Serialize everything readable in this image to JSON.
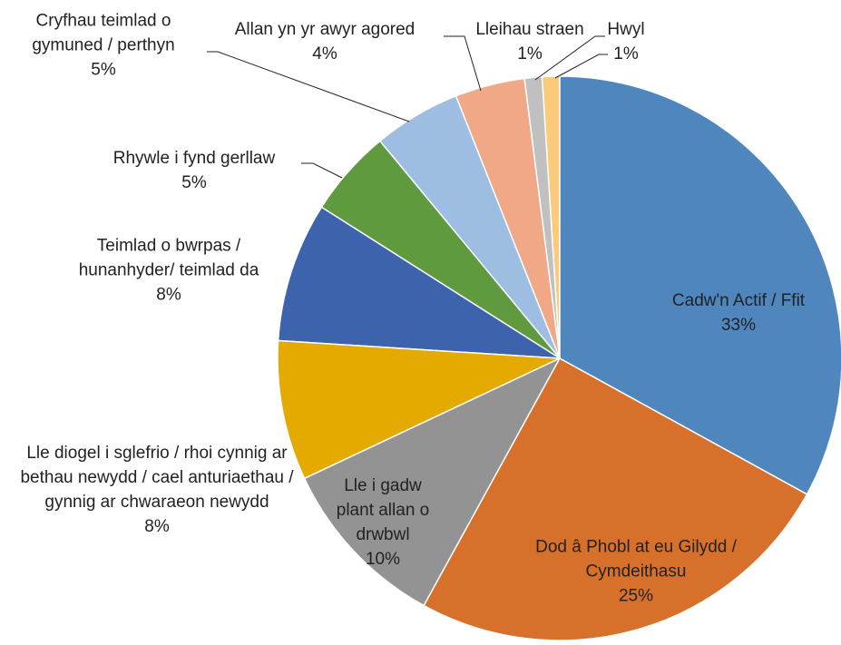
{
  "chart_data": {
    "type": "pie",
    "categories": [
      "Cadw'n Actif / Ffit",
      "Dod â Phobl at eu Gilydd / Cymdeithasu",
      "Lle i gadw plant allan o drwbwl",
      "Lle diogel i sglefrio / rhoi cynnig ar bethau newydd / cael anturiaethau / gynnig ar chwaraeon newydd",
      "Teimlad o bwrpas / hunanhyder/ teimlad da",
      "Rhywle i fynd gerllaw",
      "Cryfhau teimlad o gymuned / perthyn",
      "Allan yn yr awyr agored",
      "Lleihau straen",
      "Hwyl"
    ],
    "values": [
      33,
      25,
      10,
      8,
      8,
      5,
      5,
      4,
      1,
      1
    ],
    "value_labels": [
      "33%",
      "25%",
      "10%",
      "8%",
      "8%",
      "5%",
      "5%",
      "4%",
      "1%",
      "1%"
    ],
    "colors": [
      "#4f86be",
      "#d6702b",
      "#939393",
      "#e4aa00",
      "#3c63ac",
      "#5f9a3f",
      "#9dbde3",
      "#f1a887",
      "#c0c0c0",
      "#fdca7b"
    ]
  }
}
